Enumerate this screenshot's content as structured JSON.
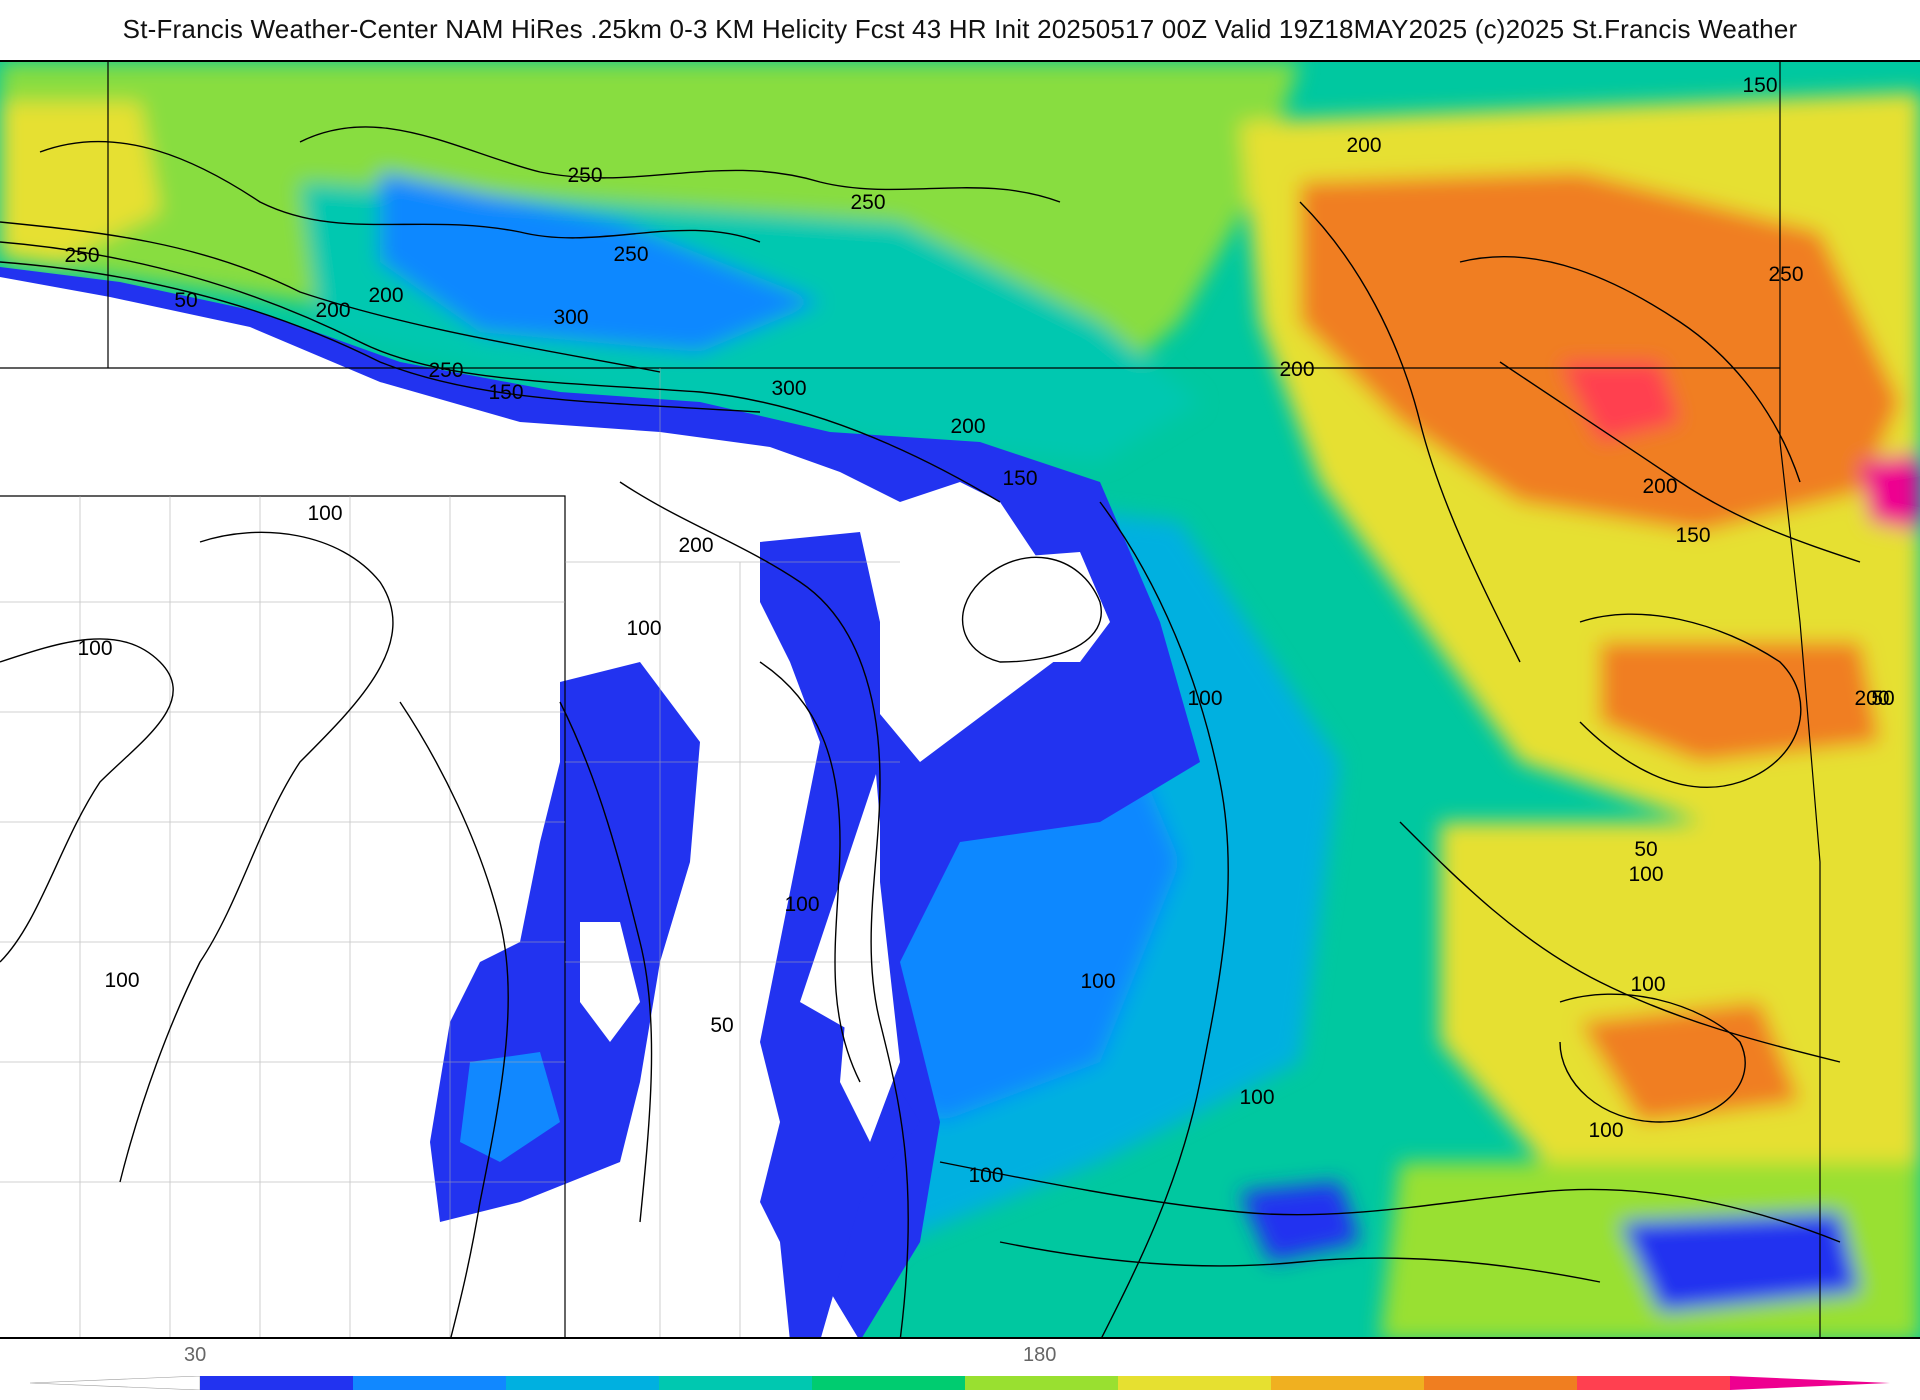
{
  "title": "St-Francis Weather-Center NAM HiRes .25km 0-3 KM Helicity Fcst 43 HR Init 20250517 00Z  Valid 19Z18MAY2025    (c)2025 St.Francis Weather",
  "colorbar": {
    "labels": [
      "30",
      "180"
    ],
    "colors": [
      "#ffffff",
      "#2233f0",
      "#1188ff",
      "#00b0e0",
      "#00c8b0",
      "#00cc70",
      "#99e030",
      "#e6e030",
      "#f0b020",
      "#f07e20",
      "#ff4050",
      "#ee0090"
    ]
  },
  "contour_labels": [
    "250",
    "50",
    "200",
    "200",
    "250",
    "250",
    "300",
    "250",
    "150",
    "300",
    "200",
    "200",
    "150",
    "200",
    "250",
    "250",
    "150",
    "200",
    "150",
    "100",
    "100",
    "100",
    "200",
    "100",
    "100",
    "100",
    "50",
    "100",
    "100",
    "100",
    "100",
    "50",
    "100",
    "100",
    "50",
    "200"
  ]
}
